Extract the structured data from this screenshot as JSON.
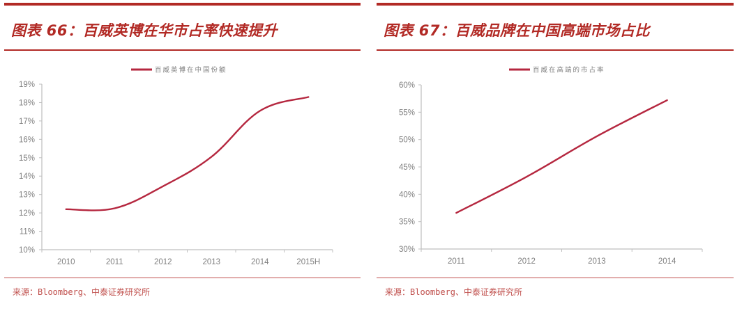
{
  "panels": [
    {
      "title": "图表 66：百威英博在华市占率快速提升",
      "source": "来源：Bloomberg、中泰证券研究所",
      "legend": "百威英博在中国份额"
    },
    {
      "title": "图表 67：百威品牌在中国高端市场占比",
      "source": "来源：Bloomberg、中泰证券研究所",
      "legend": "百威在高端的市占率"
    }
  ],
  "colors": {
    "accent": "#b22a25",
    "line": "#b5273f",
    "axis": "#bfbfbf",
    "tick_text": "#7f7f7f",
    "source_text": "#c0504d"
  },
  "chart_data": [
    {
      "type": "line",
      "title": "图表 66：百威英博在华市占率快速提升",
      "xlabel": "",
      "ylabel": "",
      "categories": [
        "2010",
        "2011",
        "2012",
        "2013",
        "2014",
        "2015H"
      ],
      "series": [
        {
          "name": "百威英博在中国份额",
          "values": [
            12.2,
            12.25,
            13.45,
            15.05,
            17.55,
            18.3
          ]
        }
      ],
      "y_ticks": [
        "10%",
        "11%",
        "12%",
        "13%",
        "14%",
        "15%",
        "16%",
        "17%",
        "18%",
        "19%"
      ],
      "ylim": [
        10,
        19
      ],
      "y_unit": "%",
      "smooth": true,
      "grid": false,
      "legend_position": "top"
    },
    {
      "type": "line",
      "title": "图表 67：百威品牌在中国高端市场占比",
      "xlabel": "",
      "ylabel": "",
      "categories": [
        "2011",
        "2012",
        "2013",
        "2014"
      ],
      "series": [
        {
          "name": "百威在高端的市占率",
          "values": [
            36.6,
            43.2,
            50.6,
            57.2
          ]
        }
      ],
      "y_ticks": [
        "30%",
        "35%",
        "40%",
        "45%",
        "50%",
        "55%",
        "60%"
      ],
      "ylim": [
        30,
        60
      ],
      "y_unit": "%",
      "smooth": true,
      "grid": false,
      "legend_position": "top"
    }
  ]
}
